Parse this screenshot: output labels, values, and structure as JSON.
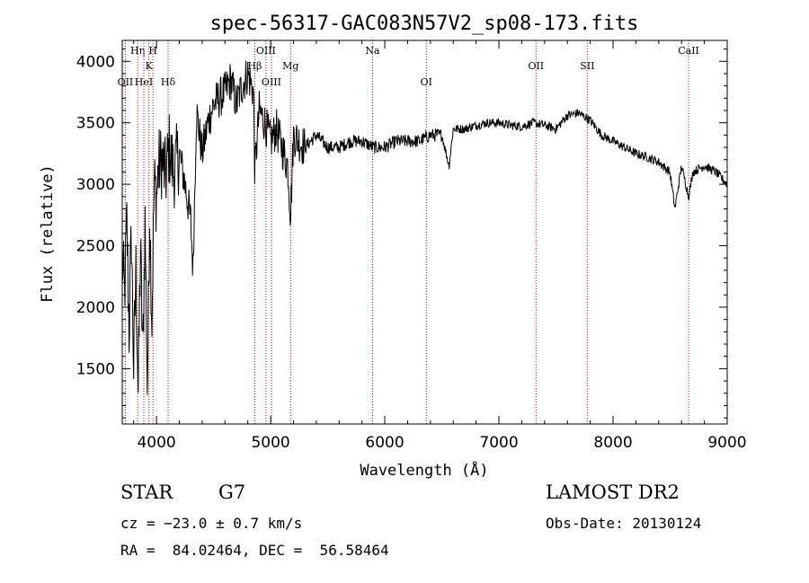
{
  "chart_data": {
    "type": "line",
    "title": "spec-56317-GAC083N57V2_sp08-173.fits",
    "xlabel": "Wavelength (Å)",
    "ylabel": "Flux (relative)",
    "xlim": [
      3700,
      9000
    ],
    "ylim": [
      1050,
      4170
    ],
    "x_ticks": [
      4000,
      5000,
      6000,
      7000,
      8000,
      9000
    ],
    "y_ticks": [
      1500,
      2000,
      2500,
      3000,
      3500,
      4000
    ],
    "grid": false,
    "line_color": "#000000",
    "marker_color": "#cc0000",
    "series": [
      {
        "x": [
          3700,
          3720,
          3740,
          3760,
          3780,
          3800,
          3820,
          3840,
          3860,
          3880,
          3900,
          3920,
          3940,
          3960,
          3980,
          4000,
          4020,
          4050,
          4080,
          4110,
          4150,
          4200,
          4250,
          4300,
          4320,
          4350,
          4400,
          4450,
          4500,
          4550,
          4600,
          4650,
          4700,
          4750,
          4800,
          4850,
          4861,
          4900,
          4950,
          5000,
          5050,
          5100,
          5150,
          5175,
          5200,
          5250,
          5300,
          5400,
          5500,
          5600,
          5700,
          5800,
          5900,
          6000,
          6100,
          6200,
          6300,
          6400,
          6500,
          6563,
          6600,
          6700,
          6800,
          6900,
          7000,
          7100,
          7200,
          7300,
          7400,
          7500,
          7600,
          7700,
          7800,
          7900,
          8000,
          8100,
          8200,
          8300,
          8400,
          8498,
          8542,
          8600,
          8662,
          8700,
          8800,
          8900,
          9000
        ],
        "y": [
          2400,
          2100,
          2700,
          1800,
          2600,
          1500,
          2300,
          1300,
          2500,
          1600,
          2700,
          1350,
          2800,
          1900,
          3000,
          2900,
          3150,
          3200,
          3050,
          3300,
          3100,
          3250,
          3000,
          2700,
          2300,
          3600,
          3250,
          3500,
          3650,
          3700,
          3750,
          3850,
          3650,
          3800,
          3900,
          3750,
          3100,
          3600,
          3500,
          3350,
          3450,
          3300,
          3150,
          2750,
          3400,
          3350,
          3300,
          3400,
          3300,
          3300,
          3350,
          3350,
          3300,
          3300,
          3350,
          3350,
          3350,
          3400,
          3400,
          3150,
          3450,
          3450,
          3480,
          3500,
          3500,
          3480,
          3470,
          3500,
          3480,
          3450,
          3560,
          3580,
          3520,
          3400,
          3350,
          3300,
          3250,
          3220,
          3180,
          3100,
          2800,
          3150,
          2900,
          3100,
          3150,
          3100,
          3000
        ]
      }
    ],
    "lines": [
      {
        "label": "OII",
        "x": 3727,
        "row": 2
      },
      {
        "label": "Hη",
        "x": 3835,
        "row": 0
      },
      {
        "label": "HeI",
        "x": 3889,
        "row": 2
      },
      {
        "label": "K",
        "x": 3934,
        "row": 1
      },
      {
        "label": "H",
        "x": 3969,
        "row": 0
      },
      {
        "label": "Hδ",
        "x": 4102,
        "row": 2
      },
      {
        "label": "Hβ",
        "x": 4861,
        "row": 1
      },
      {
        "label": "OIII",
        "x": 4959,
        "row": 0
      },
      {
        "label": "OIII",
        "x": 5007,
        "row": 2
      },
      {
        "label": "Mg",
        "x": 5175,
        "row": 1
      },
      {
        "label": "Na",
        "x": 5893,
        "row": 0
      },
      {
        "label": "OI",
        "x": 6364,
        "row": 2
      },
      {
        "label": "OII",
        "x": 7325,
        "row": 1
      },
      {
        "label": "SII",
        "x": 7774,
        "row": 1
      },
      {
        "label": "CaII",
        "x": 8662,
        "row": 0
      }
    ]
  },
  "info": {
    "class_label": "STAR",
    "subclass_label": "G7",
    "survey": "LAMOST DR2",
    "cz_line": "cz = −23.0 ± 0.7 km/s",
    "obs_date": "Obs-Date: 20130124",
    "radec_line": "RA =  84.02464, DEC =  56.58464"
  }
}
